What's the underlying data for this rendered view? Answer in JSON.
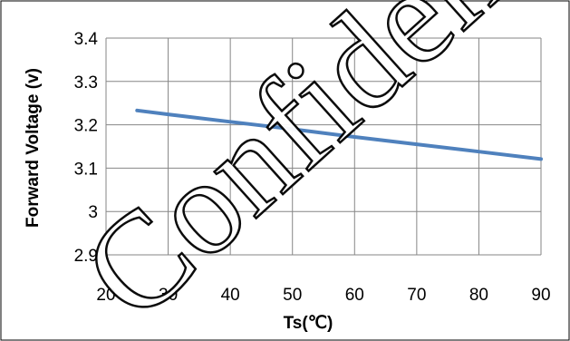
{
  "watermark": "Confidential",
  "chart_data": {
    "type": "line",
    "title": "",
    "xlabel": "Ts(℃)",
    "ylabel": "Forward Voltage (v)",
    "xlim": [
      20,
      90
    ],
    "ylim": [
      2.9,
      3.4
    ],
    "xticks": [
      "20",
      "30",
      "40",
      "50",
      "60",
      "70",
      "80",
      "90"
    ],
    "yticks": [
      "2.9",
      "3",
      "3.1",
      "3.2",
      "3.3",
      "3.4"
    ],
    "grid": true,
    "legend": "none",
    "series": [
      {
        "color": "#4f81bd",
        "x": [
          25,
          30,
          40,
          50,
          60,
          70,
          80,
          90
        ],
        "y": [
          3.233,
          3.224,
          3.207,
          3.19,
          3.172,
          3.155,
          3.138,
          3.121
        ]
      }
    ]
  }
}
